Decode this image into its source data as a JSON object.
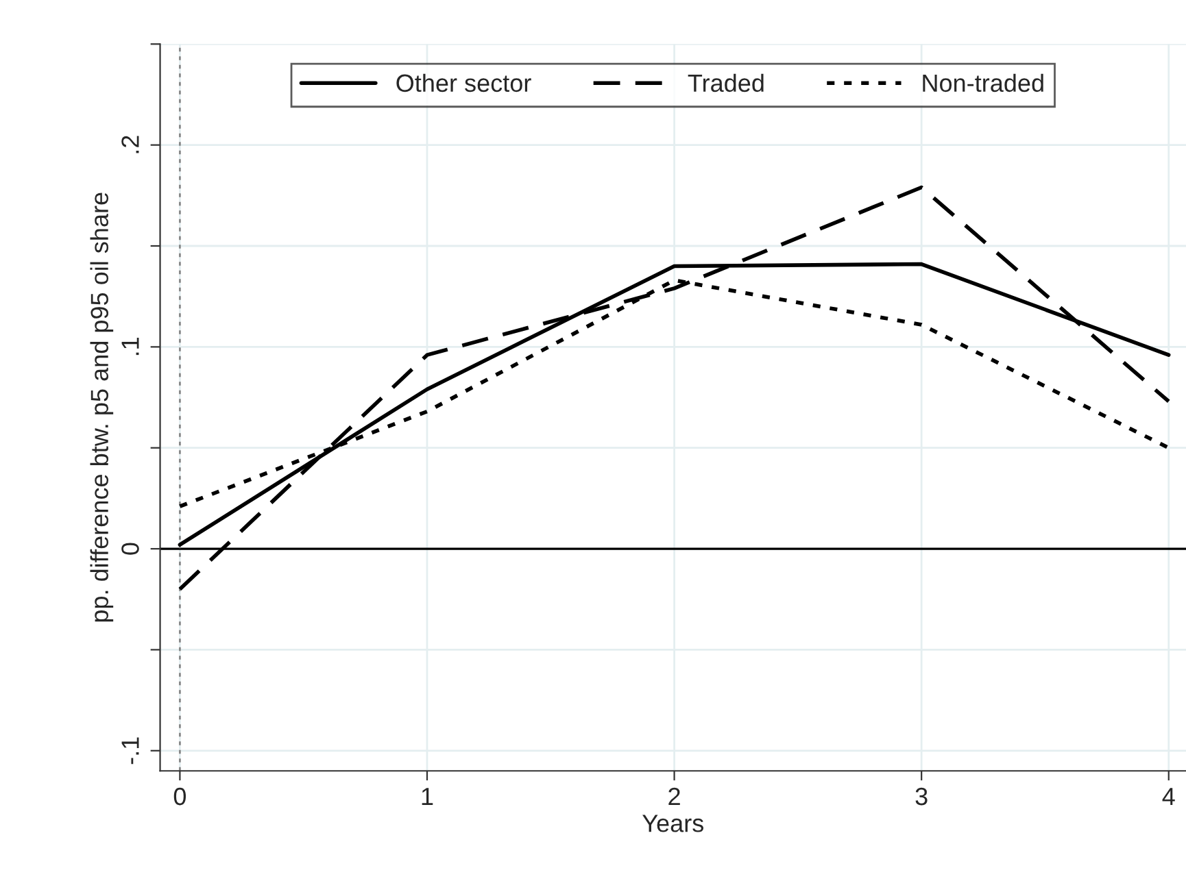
{
  "chart_data": {
    "type": "line",
    "xlabel": "Years",
    "ylabel": "pp. difference btw. p5 and p95 oil share",
    "x": [
      0,
      1,
      2,
      3,
      4
    ],
    "series": [
      {
        "name": "Other sector",
        "color": "#000000",
        "line_style": "solid",
        "values": [
          0.002,
          0.079,
          0.14,
          0.141,
          0.096
        ]
      },
      {
        "name": "Traded",
        "color": "#000000",
        "line_style": "dashed",
        "values": [
          -0.02,
          0.096,
          0.129,
          0.179,
          0.073
        ]
      },
      {
        "name": "Non-traded",
        "color": "#000000",
        "line_style": "dotted",
        "values": [
          0.021,
          0.068,
          0.133,
          0.111,
          0.05
        ]
      }
    ],
    "xlim": [
      -0.08,
      4.07
    ],
    "ylim": [
      -0.11,
      0.25
    ],
    "xticks": [
      0,
      1,
      2,
      3,
      4
    ],
    "yticks": [
      {
        "value": -0.1,
        "label": "-.1"
      },
      {
        "value": -0.05,
        "label": null
      },
      {
        "value": 0,
        "label": "0"
      },
      {
        "value": 0.05,
        "label": null
      },
      {
        "value": 0.1,
        "label": ".1"
      },
      {
        "value": 0.15,
        "label": null
      },
      {
        "value": 0.2,
        "label": ".2"
      },
      {
        "value": 0.25,
        "label": null
      }
    ],
    "ref_lines": [
      {
        "axis": "y",
        "value": 0,
        "color": "#000000",
        "line_style": "solid"
      },
      {
        "axis": "x",
        "value": 0,
        "color": "#888888",
        "line_style": "dotted"
      }
    ],
    "grid": true,
    "legend": "top",
    "marker": "none"
  }
}
